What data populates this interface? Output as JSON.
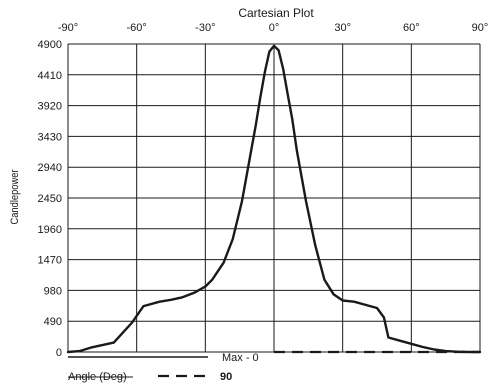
{
  "chart_data": {
    "type": "line",
    "title": "Cartesian Plot",
    "ylabel": "Candlepower",
    "xlim": [
      -90,
      90
    ],
    "ylim": [
      0,
      4900
    ],
    "grid": true,
    "x_tick_labels": [
      "-90°",
      "-60°",
      "-30°",
      "0°",
      "30°",
      "60°",
      "90°"
    ],
    "y_tick_labels": [
      "4900",
      "4410",
      "3920",
      "3430",
      "2940",
      "2450",
      "1960",
      "1470",
      "980",
      "490",
      "0"
    ],
    "series": [
      {
        "style": "solid",
        "x": [
          -90,
          -85,
          -80,
          -70,
          -62,
          -57,
          -50,
          -45,
          -40,
          -35,
          -30,
          -27,
          -22,
          -18,
          -14,
          -10,
          -8,
          -6,
          -4,
          -2,
          0,
          2,
          4,
          6,
          8,
          10,
          14,
          18,
          22,
          26,
          30,
          35,
          40,
          45,
          48,
          50,
          55,
          60,
          65,
          70,
          75,
          80,
          85,
          90
        ],
        "y": [
          0,
          15,
          70,
          150,
          470,
          730,
          800,
          830,
          870,
          940,
          1040,
          1150,
          1420,
          1800,
          2400,
          3200,
          3600,
          4050,
          4450,
          4780,
          4870,
          4800,
          4500,
          4100,
          3700,
          3200,
          2400,
          1700,
          1150,
          920,
          820,
          800,
          750,
          700,
          550,
          230,
          180,
          130,
          80,
          40,
          15,
          5,
          0,
          0
        ]
      },
      {
        "style": "dashed",
        "x": [
          0,
          90
        ],
        "y": [
          0,
          0
        ]
      }
    ],
    "legend": {
      "position": "bottom-left",
      "entries": [
        {
          "style": "solid",
          "label": "Max - 0"
        },
        {
          "style": "dashed",
          "label": "Angle (Deg)",
          "value": "90"
        }
      ]
    }
  }
}
